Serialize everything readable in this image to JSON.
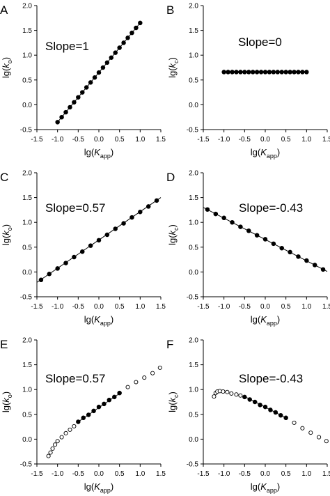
{
  "chart_data": [
    {
      "panel": "A",
      "type": "scatter",
      "ylabel": "k_o",
      "xlabel": "K_app",
      "xlim": [
        -1.5,
        1.5
      ],
      "ylim": [
        -0.5,
        2.0
      ],
      "xticks": [
        "-1.5",
        "-1.0",
        "-0.5",
        "0.0",
        "0.5",
        "1.0",
        "1.5"
      ],
      "yticks": [
        "-0.5",
        "0.0",
        "0.5",
        "1.0",
        "1.5",
        "2.0"
      ],
      "annotation": "Slope=1",
      "fit_line": {
        "x": [
          -1.0,
          1.0
        ],
        "y": [
          -0.35,
          1.65
        ]
      },
      "points": {
        "x": [
          -1.0,
          -0.9,
          -0.8,
          -0.7,
          -0.6,
          -0.5,
          -0.4,
          -0.3,
          -0.2,
          -0.1,
          0.0,
          0.1,
          0.2,
          0.3,
          0.4,
          0.5,
          0.6,
          0.7,
          0.8,
          0.9,
          1.0
        ],
        "y": [
          -0.35,
          -0.25,
          -0.15,
          -0.05,
          0.05,
          0.15,
          0.25,
          0.35,
          0.45,
          0.55,
          0.65,
          0.75,
          0.85,
          0.95,
          1.05,
          1.15,
          1.25,
          1.35,
          1.45,
          1.55,
          1.65
        ],
        "filled": [
          true,
          true,
          true,
          true,
          true,
          true,
          true,
          true,
          true,
          true,
          true,
          true,
          true,
          true,
          true,
          true,
          true,
          true,
          true,
          true,
          true
        ]
      }
    },
    {
      "panel": "B",
      "type": "scatter",
      "ylabel": "k_c",
      "xlabel": "K_app",
      "xlim": [
        -1.5,
        1.5
      ],
      "ylim": [
        -0.5,
        2.0
      ],
      "xticks": [
        "-1.5",
        "-1.0",
        "-0.5",
        "0.0",
        "0.5",
        "1.0",
        "1.5"
      ],
      "yticks": [
        "-0.5",
        "0.0",
        "0.5",
        "1.0",
        "1.5",
        "2.0"
      ],
      "annotation": "Slope=0",
      "fit_line": {
        "x": [
          -1.0,
          1.0
        ],
        "y": [
          0.66,
          0.66
        ]
      },
      "points": {
        "x": [
          -1.0,
          -0.9,
          -0.8,
          -0.7,
          -0.6,
          -0.5,
          -0.4,
          -0.3,
          -0.2,
          -0.1,
          0.0,
          0.1,
          0.2,
          0.3,
          0.4,
          0.5,
          0.6,
          0.7,
          0.8,
          0.9,
          1.0
        ],
        "y": [
          0.66,
          0.66,
          0.66,
          0.66,
          0.66,
          0.66,
          0.66,
          0.66,
          0.66,
          0.66,
          0.66,
          0.66,
          0.66,
          0.66,
          0.66,
          0.66,
          0.66,
          0.66,
          0.66,
          0.66,
          0.66
        ],
        "filled": [
          true,
          true,
          true,
          true,
          true,
          true,
          true,
          true,
          true,
          true,
          true,
          true,
          true,
          true,
          true,
          true,
          true,
          true,
          true,
          true,
          true
        ]
      }
    },
    {
      "panel": "C",
      "type": "scatter",
      "ylabel": "k_o",
      "xlabel": "K_app",
      "xlim": [
        -1.5,
        1.5
      ],
      "ylim": [
        -0.5,
        2.0
      ],
      "xticks": [
        "-1.5",
        "-1.0",
        "-0.5",
        "0.0",
        "0.5",
        "1.0",
        "1.5"
      ],
      "yticks": [
        "-0.5",
        "0.0",
        "0.5",
        "1.0",
        "1.5",
        "2.0"
      ],
      "annotation": "Slope=0.57",
      "fit_line": {
        "x": [
          -1.5,
          1.5
        ],
        "y": [
          -0.21,
          1.5
        ]
      },
      "points": {
        "x": [
          -1.4,
          -1.2,
          -1.0,
          -0.8,
          -0.6,
          -0.4,
          -0.2,
          0.0,
          0.2,
          0.4,
          0.6,
          0.8,
          1.0,
          1.2,
          1.4
        ],
        "y": [
          -0.16,
          -0.04,
          0.07,
          0.18,
          0.3,
          0.41,
          0.53,
          0.64,
          0.75,
          0.87,
          0.98,
          1.1,
          1.21,
          1.32,
          1.44
        ],
        "filled": [
          true,
          true,
          true,
          true,
          true,
          true,
          true,
          true,
          true,
          true,
          true,
          true,
          true,
          true,
          true
        ]
      }
    },
    {
      "panel": "D",
      "type": "scatter",
      "ylabel": "k_c",
      "xlabel": "K_app",
      "xlim": [
        -1.5,
        1.5
      ],
      "ylim": [
        -0.5,
        2.0
      ],
      "xticks": [
        "-1.5",
        "-1.0",
        "-0.5",
        "0.0",
        "0.5",
        "1.0",
        "1.5"
      ],
      "yticks": [
        "-0.5",
        "0.0",
        "0.5",
        "1.0",
        "1.5",
        "2.0"
      ],
      "annotation": "Slope=-0.43",
      "fit_line": {
        "x": [
          -1.5,
          1.5
        ],
        "y": [
          1.3,
          0.01
        ]
      },
      "points": {
        "x": [
          -1.4,
          -1.2,
          -1.0,
          -0.8,
          -0.6,
          -0.4,
          -0.2,
          0.0,
          0.2,
          0.4,
          0.6,
          0.8,
          1.0,
          1.2,
          1.4
        ],
        "y": [
          1.26,
          1.17,
          1.09,
          1.0,
          0.91,
          0.83,
          0.74,
          0.66,
          0.57,
          0.48,
          0.4,
          0.31,
          0.23,
          0.14,
          0.05
        ],
        "filled": [
          true,
          true,
          true,
          true,
          true,
          true,
          true,
          true,
          true,
          true,
          true,
          true,
          true,
          true,
          true
        ]
      }
    },
    {
      "panel": "E",
      "type": "scatter",
      "ylabel": "k_o",
      "xlabel": "K_app",
      "xlim": [
        -1.5,
        1.5
      ],
      "ylim": [
        -0.5,
        2.0
      ],
      "xticks": [
        "-1.5",
        "-1.0",
        "-0.5",
        "0.0",
        "0.5",
        "1.0",
        "1.5"
      ],
      "yticks": [
        "-0.5",
        "0.0",
        "0.5",
        "1.0",
        "1.5",
        "2.0"
      ],
      "annotation": "Slope=0.57",
      "fit_line": {
        "x": [
          -0.5,
          0.5
        ],
        "y": [
          0.35,
          0.92
        ]
      },
      "points": {
        "x": [
          -1.22,
          -1.17,
          -1.12,
          -1.06,
          -1.0,
          -0.9,
          -0.8,
          -0.7,
          -0.6,
          -0.5,
          -0.375,
          -0.25,
          -0.125,
          0.0,
          0.125,
          0.25,
          0.375,
          0.5,
          0.7,
          0.9,
          1.1,
          1.3,
          1.48
        ],
        "y": [
          -0.34,
          -0.27,
          -0.19,
          -0.11,
          -0.04,
          0.04,
          0.12,
          0.19,
          0.26,
          0.35,
          0.43,
          0.49,
          0.57,
          0.65,
          0.71,
          0.79,
          0.85,
          0.93,
          1.05,
          1.15,
          1.24,
          1.33,
          1.44
        ],
        "filled": [
          false,
          false,
          false,
          false,
          false,
          false,
          false,
          false,
          false,
          true,
          true,
          true,
          true,
          true,
          true,
          true,
          true,
          true,
          false,
          false,
          false,
          false,
          false
        ]
      }
    },
    {
      "panel": "F",
      "type": "scatter",
      "ylabel": "k_c",
      "xlabel": "K_app",
      "xlim": [
        -1.5,
        1.5
      ],
      "ylim": [
        -0.5,
        2.0
      ],
      "xticks": [
        "-1.5",
        "-1.0",
        "-0.5",
        "0.0",
        "0.5",
        "1.0",
        "1.5"
      ],
      "yticks": [
        "-0.5",
        "0.0",
        "0.5",
        "1.0",
        "1.5",
        "2.0"
      ],
      "annotation": "Slope=-0.43",
      "fit_line": {
        "x": [
          -0.5,
          0.5
        ],
        "y": [
          0.86,
          0.43
        ]
      },
      "points": {
        "x": [
          -1.24,
          -1.2,
          -1.16,
          -1.1,
          -1.02,
          -0.92,
          -0.82,
          -0.7,
          -0.6,
          -0.5,
          -0.375,
          -0.25,
          -0.125,
          0.0,
          0.125,
          0.25,
          0.375,
          0.5,
          0.7,
          0.9,
          1.1,
          1.3,
          1.48
        ],
        "y": [
          0.86,
          0.93,
          0.96,
          0.97,
          0.96,
          0.95,
          0.92,
          0.9,
          0.88,
          0.85,
          0.8,
          0.75,
          0.69,
          0.65,
          0.59,
          0.54,
          0.48,
          0.43,
          0.33,
          0.22,
          0.13,
          0.04,
          -0.04
        ],
        "filled": [
          false,
          false,
          false,
          false,
          false,
          false,
          false,
          false,
          false,
          true,
          true,
          true,
          true,
          true,
          true,
          true,
          true,
          true,
          false,
          false,
          false,
          false,
          false
        ]
      }
    }
  ]
}
